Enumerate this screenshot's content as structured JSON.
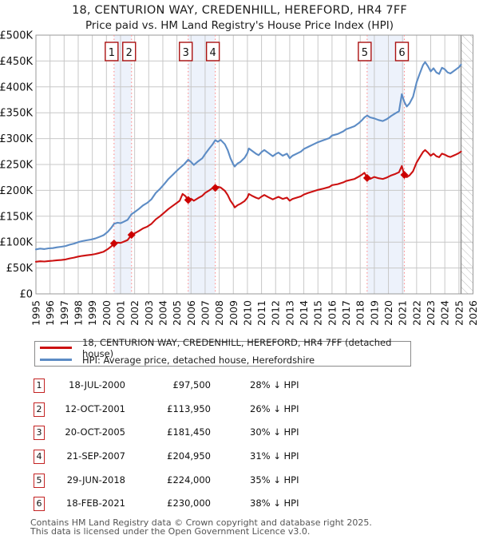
{
  "title": "18, CENTURION WAY, CREDENHILL, HEREFORD, HR4 7FF",
  "subtitle": "Price paid vs. HM Land Registry's House Price Index (HPI)",
  "colors": {
    "property_line": "#cc1111",
    "hpi_line": "#5d8cc5",
    "marker": "#cc0000",
    "sale_dashed_line": "#ff8d8d",
    "band": "#edf2fb",
    "grid": "#c8c8c8",
    "plot_border": "#999999",
    "hatch": "#bbbbbb",
    "hatch_edge": "#8c8c8c",
    "chart_box_border": "#aa1111",
    "table_box_border": "#c32222"
  },
  "chart_data": {
    "type": "line",
    "x_axis": {
      "min": 1995,
      "max": 2026,
      "tick_labels": [
        "1995",
        "1996",
        "1997",
        "1998",
        "1999",
        "2000",
        "2001",
        "2002",
        "2003",
        "2004",
        "2005",
        "2006",
        "2007",
        "2008",
        "2009",
        "2010",
        "2011",
        "2012",
        "2013",
        "2014",
        "2015",
        "2016",
        "2017",
        "2018",
        "2019",
        "2020",
        "2021",
        "2022",
        "2023",
        "2024",
        "2025",
        "2026"
      ]
    },
    "y_axis": {
      "min": 0,
      "max": 500000,
      "tick_step": 50000,
      "tick_labels": [
        "£0",
        "£50K",
        "£100K",
        "£150K",
        "£200K",
        "£250K",
        "£300K",
        "£350K",
        "£400K",
        "£450K",
        "£500K"
      ]
    },
    "grid": true,
    "legend_position": "bottom",
    "bands_between_sales": [
      [
        2000.54,
        2001.78
      ],
      [
        2005.8,
        2007.72
      ],
      [
        2018.49,
        2021.13
      ]
    ],
    "future_hatch": [
      2025.15,
      2026
    ],
    "series": [
      {
        "id": "price",
        "name": "18, CENTURION WAY, CREDENHILL, HEREFORD, HR4 7FF (detached house)",
        "points": [
          [
            1995.0,
            62000
          ],
          [
            1995.3,
            63000
          ],
          [
            1995.6,
            62500
          ],
          [
            1995.9,
            63500
          ],
          [
            1996.2,
            64000
          ],
          [
            1996.5,
            65000
          ],
          [
            1996.8,
            65500
          ],
          [
            1997.1,
            66500
          ],
          [
            1997.4,
            68500
          ],
          [
            1997.7,
            70000
          ],
          [
            1998.0,
            72000
          ],
          [
            1998.3,
            73500
          ],
          [
            1998.6,
            74500
          ],
          [
            1998.9,
            75500
          ],
          [
            1999.2,
            77000
          ],
          [
            1999.5,
            79000
          ],
          [
            1999.8,
            81500
          ],
          [
            2000.1,
            86500
          ],
          [
            2000.35,
            92000
          ],
          [
            2000.54,
            97500
          ],
          [
            2000.8,
            99000
          ],
          [
            2001.0,
            98500
          ],
          [
            2001.2,
            100500
          ],
          [
            2001.5,
            104000
          ],
          [
            2001.78,
            113950
          ],
          [
            2002.0,
            117000
          ],
          [
            2002.3,
            121500
          ],
          [
            2002.6,
            126500
          ],
          [
            2002.9,
            130000
          ],
          [
            2003.2,
            135500
          ],
          [
            2003.5,
            144000
          ],
          [
            2003.8,
            150000
          ],
          [
            2004.1,
            157000
          ],
          [
            2004.4,
            164000
          ],
          [
            2004.7,
            170000
          ],
          [
            2005.0,
            176000
          ],
          [
            2005.2,
            180000
          ],
          [
            2005.4,
            193000
          ],
          [
            2005.6,
            189000
          ],
          [
            2005.8,
            181450
          ],
          [
            2006.0,
            184000
          ],
          [
            2006.2,
            180000
          ],
          [
            2006.5,
            185000
          ],
          [
            2006.8,
            189500
          ],
          [
            2007.0,
            195000
          ],
          [
            2007.3,
            200000
          ],
          [
            2007.5,
            204000
          ],
          [
            2007.72,
            204950
          ],
          [
            2007.9,
            207000
          ],
          [
            2008.1,
            205500
          ],
          [
            2008.4,
            199000
          ],
          [
            2008.6,
            191000
          ],
          [
            2008.8,
            180000
          ],
          [
            2009.0,
            172000
          ],
          [
            2009.1,
            167000
          ],
          [
            2009.3,
            171500
          ],
          [
            2009.5,
            174000
          ],
          [
            2009.8,
            179500
          ],
          [
            2010.0,
            186000
          ],
          [
            2010.1,
            193000
          ],
          [
            2010.3,
            190000
          ],
          [
            2010.6,
            186000
          ],
          [
            2010.8,
            184000
          ],
          [
            2011.0,
            188000
          ],
          [
            2011.2,
            191000
          ],
          [
            2011.5,
            186500
          ],
          [
            2011.8,
            182500
          ],
          [
            2012.0,
            185000
          ],
          [
            2012.2,
            187500
          ],
          [
            2012.5,
            183500
          ],
          [
            2012.8,
            186000
          ],
          [
            2013.0,
            180000
          ],
          [
            2013.2,
            183500
          ],
          [
            2013.5,
            186000
          ],
          [
            2013.8,
            188500
          ],
          [
            2014.0,
            192000
          ],
          [
            2014.3,
            195000
          ],
          [
            2014.6,
            197500
          ],
          [
            2015.0,
            201000
          ],
          [
            2015.4,
            203500
          ],
          [
            2015.8,
            206500
          ],
          [
            2016.0,
            210000
          ],
          [
            2016.4,
            212000
          ],
          [
            2016.8,
            215500
          ],
          [
            2017.0,
            218000
          ],
          [
            2017.3,
            220000
          ],
          [
            2017.6,
            222000
          ],
          [
            2017.9,
            226500
          ],
          [
            2018.1,
            230000
          ],
          [
            2018.3,
            234000
          ],
          [
            2018.49,
            224000
          ],
          [
            2018.7,
            222000
          ],
          [
            2019.0,
            226000
          ],
          [
            2019.3,
            223500
          ],
          [
            2019.6,
            222000
          ],
          [
            2019.9,
            225000
          ],
          [
            2020.2,
            229000
          ],
          [
            2020.5,
            232000
          ],
          [
            2020.75,
            235000
          ],
          [
            2020.95,
            247000
          ],
          [
            2021.13,
            230000
          ],
          [
            2021.3,
            225500
          ],
          [
            2021.5,
            229000
          ],
          [
            2021.75,
            237000
          ],
          [
            2022.0,
            254000
          ],
          [
            2022.2,
            263000
          ],
          [
            2022.45,
            274000
          ],
          [
            2022.6,
            278000
          ],
          [
            2022.8,
            273000
          ],
          [
            2023.0,
            267000
          ],
          [
            2023.2,
            271000
          ],
          [
            2023.4,
            266000
          ],
          [
            2023.6,
            264000
          ],
          [
            2023.8,
            271000
          ],
          [
            2024.0,
            269000
          ],
          [
            2024.2,
            266000
          ],
          [
            2024.4,
            264500
          ],
          [
            2024.6,
            267000
          ],
          [
            2024.8,
            269500
          ],
          [
            2025.0,
            272000
          ],
          [
            2025.15,
            275000
          ]
        ]
      },
      {
        "id": "hpi",
        "name": "HPI: Average price, detached house, Herefordshire",
        "points": [
          [
            1995.0,
            86000
          ],
          [
            1995.3,
            87500
          ],
          [
            1995.6,
            86500
          ],
          [
            1995.9,
            88000
          ],
          [
            1996.2,
            88500
          ],
          [
            1996.5,
            90000
          ],
          [
            1996.8,
            91000
          ],
          [
            1997.1,
            92500
          ],
          [
            1997.4,
            95000
          ],
          [
            1997.7,
            97000
          ],
          [
            1998.0,
            100000
          ],
          [
            1998.3,
            102000
          ],
          [
            1998.6,
            103500
          ],
          [
            1998.9,
            105000
          ],
          [
            1999.2,
            107000
          ],
          [
            1999.5,
            110000
          ],
          [
            1999.8,
            113500
          ],
          [
            2000.1,
            120000
          ],
          [
            2000.35,
            128000
          ],
          [
            2000.54,
            135400
          ],
          [
            2000.8,
            137500
          ],
          [
            2001.0,
            136500
          ],
          [
            2001.2,
            139000
          ],
          [
            2001.5,
            143000
          ],
          [
            2001.78,
            154000
          ],
          [
            2002.0,
            158000
          ],
          [
            2002.3,
            164000
          ],
          [
            2002.6,
            171000
          ],
          [
            2002.9,
            176000
          ],
          [
            2003.2,
            183000
          ],
          [
            2003.5,
            195000
          ],
          [
            2003.8,
            203000
          ],
          [
            2004.1,
            212000
          ],
          [
            2004.4,
            222000
          ],
          [
            2004.7,
            230000
          ],
          [
            2005.0,
            238000
          ],
          [
            2005.2,
            243000
          ],
          [
            2005.5,
            250000
          ],
          [
            2005.8,
            259200
          ],
          [
            2006.0,
            255000
          ],
          [
            2006.2,
            249000
          ],
          [
            2006.5,
            256000
          ],
          [
            2006.8,
            262000
          ],
          [
            2007.0,
            270000
          ],
          [
            2007.3,
            281000
          ],
          [
            2007.5,
            288000
          ],
          [
            2007.72,
            297000
          ],
          [
            2007.9,
            294000
          ],
          [
            2008.1,
            297500
          ],
          [
            2008.4,
            289000
          ],
          [
            2008.6,
            278000
          ],
          [
            2008.8,
            262000
          ],
          [
            2009.0,
            250000
          ],
          [
            2009.1,
            246000
          ],
          [
            2009.3,
            252000
          ],
          [
            2009.5,
            255000
          ],
          [
            2009.8,
            263000
          ],
          [
            2010.0,
            272000
          ],
          [
            2010.1,
            281000
          ],
          [
            2010.3,
            277000
          ],
          [
            2010.6,
            271000
          ],
          [
            2010.8,
            268000
          ],
          [
            2011.0,
            274000
          ],
          [
            2011.2,
            278000
          ],
          [
            2011.5,
            272000
          ],
          [
            2011.8,
            266000
          ],
          [
            2012.0,
            270000
          ],
          [
            2012.2,
            273000
          ],
          [
            2012.5,
            267000
          ],
          [
            2012.8,
            271000
          ],
          [
            2013.0,
            262000
          ],
          [
            2013.2,
            267000
          ],
          [
            2013.5,
            271000
          ],
          [
            2013.8,
            275000
          ],
          [
            2014.0,
            280000
          ],
          [
            2014.3,
            284000
          ],
          [
            2014.6,
            288000
          ],
          [
            2015.0,
            293000
          ],
          [
            2015.4,
            297000
          ],
          [
            2015.8,
            301000
          ],
          [
            2016.0,
            306000
          ],
          [
            2016.4,
            309000
          ],
          [
            2016.8,
            314000
          ],
          [
            2017.0,
            318000
          ],
          [
            2017.3,
            321000
          ],
          [
            2017.6,
            324000
          ],
          [
            2017.9,
            330000
          ],
          [
            2018.1,
            335000
          ],
          [
            2018.3,
            341000
          ],
          [
            2018.49,
            344600
          ],
          [
            2018.7,
            341000
          ],
          [
            2019.0,
            339000
          ],
          [
            2019.3,
            336000
          ],
          [
            2019.6,
            334000
          ],
          [
            2019.9,
            338000
          ],
          [
            2020.2,
            344000
          ],
          [
            2020.5,
            349000
          ],
          [
            2020.75,
            353000
          ],
          [
            2020.95,
            386000
          ],
          [
            2021.13,
            371000
          ],
          [
            2021.3,
            362000
          ],
          [
            2021.5,
            368000
          ],
          [
            2021.75,
            381000
          ],
          [
            2022.0,
            409000
          ],
          [
            2022.2,
            424000
          ],
          [
            2022.45,
            442000
          ],
          [
            2022.6,
            448000
          ],
          [
            2022.8,
            440000
          ],
          [
            2023.0,
            430000
          ],
          [
            2023.2,
            436000
          ],
          [
            2023.4,
            428000
          ],
          [
            2023.6,
            425000
          ],
          [
            2023.8,
            437000
          ],
          [
            2024.0,
            434000
          ],
          [
            2024.2,
            428000
          ],
          [
            2024.4,
            426000
          ],
          [
            2024.6,
            430000
          ],
          [
            2024.8,
            434000
          ],
          [
            2025.0,
            438000
          ],
          [
            2025.15,
            443000
          ]
        ]
      }
    ],
    "sales": [
      {
        "num": "1",
        "x": 2000.54,
        "price": 97500,
        "date": "18-JUL-2000",
        "amount": "£97,500",
        "vs_hpi": "28% ↓ HPI"
      },
      {
        "num": "2",
        "x": 2001.78,
        "price": 113950,
        "date": "12-OCT-2001",
        "amount": "£113,950",
        "vs_hpi": "26% ↓ HPI"
      },
      {
        "num": "3",
        "x": 2005.8,
        "price": 181450,
        "date": "20-OCT-2005",
        "amount": "£181,450",
        "vs_hpi": "30% ↓ HPI"
      },
      {
        "num": "4",
        "x": 2007.72,
        "price": 204950,
        "date": "21-SEP-2007",
        "amount": "£204,950",
        "vs_hpi": "31% ↓ HPI"
      },
      {
        "num": "5",
        "x": 2018.49,
        "price": 224000,
        "date": "29-JUN-2018",
        "amount": "£224,000",
        "vs_hpi": "35% ↓ HPI"
      },
      {
        "num": "6",
        "x": 2021.13,
        "price": 230000,
        "date": "18-FEB-2021",
        "amount": "£230,000",
        "vs_hpi": "38% ↓ HPI"
      }
    ]
  },
  "legend": {
    "property_label": "18, CENTURION WAY, CREDENHILL, HEREFORD, HR4 7FF (detached house)",
    "hpi_label": "HPI: Average price, detached house, Herefordshire"
  },
  "footer": {
    "line1": "Contains HM Land Registry data © Crown copyright and database right 2025.",
    "line2": "This data is licensed under the Open Government Licence v3.0."
  }
}
